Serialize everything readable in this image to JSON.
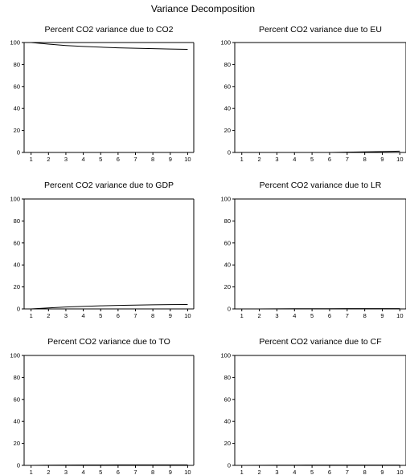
{
  "title": "Variance Decomposition",
  "chart_data": [
    {
      "type": "line",
      "title": "Percent CO2 variance due to CO2",
      "x": [
        1,
        2,
        3,
        4,
        5,
        6,
        7,
        8,
        9,
        10
      ],
      "ylim": [
        0,
        100
      ],
      "yticks": [
        "0",
        "20",
        "40",
        "60",
        "80",
        "100"
      ],
      "xticks": [
        "1",
        "2",
        "3",
        "4",
        "5",
        "6",
        "7",
        "8",
        "9",
        "10"
      ],
      "series": [
        {
          "values": [
            100,
            98.5,
            97.3,
            96.4,
            95.8,
            95.2,
            94.8,
            94.4,
            94.1,
            93.8
          ]
        }
      ]
    },
    {
      "type": "line",
      "title": "Percent CO2 variance due to EU",
      "x": [
        1,
        2,
        3,
        4,
        5,
        6,
        7,
        8,
        9,
        10
      ],
      "ylim": [
        0,
        100
      ],
      "yticks": [
        "0",
        "20",
        "40",
        "60",
        "80",
        "100"
      ],
      "xticks": [
        "1",
        "2",
        "3",
        "4",
        "5",
        "6",
        "7",
        "8",
        "9",
        "10"
      ],
      "series": [
        {
          "values": [
            0,
            0,
            0,
            0,
            0,
            0,
            0.3,
            0.5,
            0.8,
            1.2
          ]
        }
      ]
    },
    {
      "type": "line",
      "title": "Percent CO2 variance due to GDP",
      "x": [
        1,
        2,
        3,
        4,
        5,
        6,
        7,
        8,
        9,
        10
      ],
      "ylim": [
        0,
        100
      ],
      "yticks": [
        "0",
        "20",
        "40",
        "60",
        "80",
        "100"
      ],
      "xticks": [
        "1",
        "2",
        "3",
        "4",
        "5",
        "6",
        "7",
        "8",
        "9",
        "10"
      ],
      "series": [
        {
          "values": [
            0,
            0.9,
            1.7,
            2.3,
            2.8,
            3.2,
            3.5,
            3.7,
            3.9,
            4.0
          ]
        }
      ]
    },
    {
      "type": "line",
      "title": "Percent CO2 variance due to LR",
      "x": [
        1,
        2,
        3,
        4,
        5,
        6,
        7,
        8,
        9,
        10
      ],
      "ylim": [
        0,
        100
      ],
      "yticks": [
        "0",
        "20",
        "40",
        "60",
        "80",
        "100"
      ],
      "xticks": [
        "1",
        "2",
        "3",
        "4",
        "5",
        "6",
        "7",
        "8",
        "9",
        "10"
      ],
      "series": [
        {
          "values": [
            0,
            0,
            0.1,
            0.2,
            0.2,
            0.2,
            0.3,
            0.3,
            0.3,
            0.3
          ]
        }
      ]
    },
    {
      "type": "line",
      "title": "Percent CO2 variance due to TO",
      "x": [
        1,
        2,
        3,
        4,
        5,
        6,
        7,
        8,
        9,
        10
      ],
      "ylim": [
        0,
        100
      ],
      "yticks": [
        "0",
        "20",
        "40",
        "60",
        "80",
        "100"
      ],
      "xticks": [
        "1",
        "2",
        "3",
        "4",
        "5",
        "6",
        "7",
        "8",
        "9",
        "10"
      ],
      "series": [
        {
          "values": [
            0,
            0.2,
            0.3,
            0.4,
            0.4,
            0.5,
            0.5,
            0.5,
            0.5,
            0.5
          ]
        }
      ]
    },
    {
      "type": "line",
      "title": "Percent CO2 variance due to CF",
      "x": [
        1,
        2,
        3,
        4,
        5,
        6,
        7,
        8,
        9,
        10
      ],
      "ylim": [
        0,
        100
      ],
      "yticks": [
        "0",
        "20",
        "40",
        "60",
        "80",
        "100"
      ],
      "xticks": [
        "1",
        "2",
        "3",
        "4",
        "5",
        "6",
        "7",
        "8",
        "9",
        "10"
      ],
      "series": [
        {
          "values": [
            0,
            0.1,
            0.2,
            0.2,
            0.3,
            0.3,
            0.3,
            0.3,
            0.3,
            0.3
          ]
        }
      ]
    }
  ]
}
